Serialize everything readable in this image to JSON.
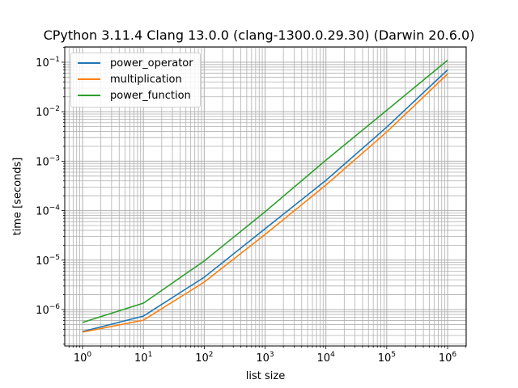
{
  "chart_data": {
    "type": "line",
    "title": "CPython 3.11.4 Clang 13.0.0 (clang-1300.0.29.30) (Darwin 20.6.0)",
    "xlabel": "list size",
    "ylabel": "time [seconds]",
    "xscale": "log",
    "yscale": "log",
    "x": [
      1,
      10,
      100,
      1000,
      10000,
      100000,
      1000000
    ],
    "x_tick_labels": [
      "10^0",
      "10^1",
      "10^2",
      "10^3",
      "10^4",
      "10^5",
      "10^6"
    ],
    "y_tick_labels": [
      "10^-6",
      "10^-5",
      "10^-4",
      "10^-3",
      "10^-2",
      "10^-1"
    ],
    "xlim": [
      0.55,
      1900000
    ],
    "ylim": [
      1.6e-07,
      0.2
    ],
    "grid": "major and minor",
    "legend_position": "upper left",
    "series": [
      {
        "name": "power_operator",
        "color": "#1f77b4",
        "values": [
          3.6e-07,
          7.4e-07,
          4.5e-06,
          4.3e-05,
          0.00041,
          0.0049,
          0.07
        ]
      },
      {
        "name": "multiplication",
        "color": "#ff7f0e",
        "values": [
          3.5e-07,
          6.1e-07,
          3.6e-06,
          3.3e-05,
          0.00033,
          0.0039,
          0.058
        ]
      },
      {
        "name": "power_function",
        "color": "#2ca02c",
        "values": [
          5.5e-07,
          1.35e-06,
          9.6e-06,
          9.5e-05,
          0.00105,
          0.0107,
          0.11
        ]
      }
    ]
  }
}
